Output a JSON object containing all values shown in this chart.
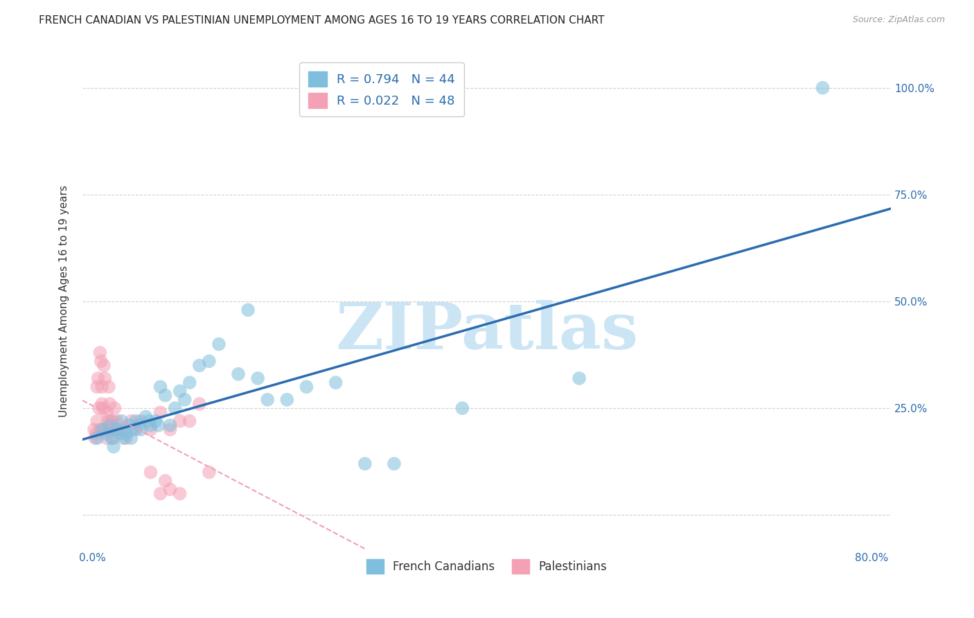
{
  "title": "FRENCH CANADIAN VS PALESTINIAN UNEMPLOYMENT AMONG AGES 16 TO 19 YEARS CORRELATION CHART",
  "source": "Source: ZipAtlas.com",
  "ylabel": "Unemployment Among Ages 16 to 19 years",
  "x_ticks": [
    0.0,
    0.2,
    0.4,
    0.6,
    0.8
  ],
  "x_tick_labels": [
    "0.0%",
    "",
    "",
    "",
    "80.0%"
  ],
  "y_ticks": [
    0.0,
    0.25,
    0.5,
    0.75,
    1.0
  ],
  "y_tick_labels": [
    "",
    "25.0%",
    "50.0%",
    "75.0%",
    "100.0%"
  ],
  "xlim": [
    -0.01,
    0.82
  ],
  "ylim": [
    -0.08,
    1.08
  ],
  "background_color": "#ffffff",
  "watermark": "ZIPatlas",
  "watermark_color": "#cce5f5",
  "blue_R": 0.794,
  "blue_N": 44,
  "pink_R": 0.022,
  "pink_N": 48,
  "blue_color": "#7fbfdd",
  "pink_color": "#f4a0b5",
  "blue_line_color": "#2b6cb0",
  "pink_line_color": "#f0a0b8",
  "blue_scatter_x": [
    0.005,
    0.01,
    0.015,
    0.018,
    0.02,
    0.022,
    0.025,
    0.028,
    0.03,
    0.032,
    0.035,
    0.038,
    0.04,
    0.042,
    0.045,
    0.048,
    0.05,
    0.055,
    0.058,
    0.06,
    0.065,
    0.068,
    0.07,
    0.075,
    0.08,
    0.085,
    0.09,
    0.095,
    0.1,
    0.11,
    0.12,
    0.13,
    0.15,
    0.16,
    0.17,
    0.18,
    0.2,
    0.22,
    0.25,
    0.28,
    0.31,
    0.38,
    0.5,
    0.75
  ],
  "blue_scatter_y": [
    0.18,
    0.2,
    0.19,
    0.21,
    0.18,
    0.16,
    0.2,
    0.19,
    0.22,
    0.18,
    0.19,
    0.21,
    0.18,
    0.2,
    0.22,
    0.21,
    0.2,
    0.23,
    0.22,
    0.21,
    0.22,
    0.21,
    0.3,
    0.28,
    0.21,
    0.25,
    0.29,
    0.27,
    0.31,
    0.35,
    0.36,
    0.4,
    0.33,
    0.48,
    0.32,
    0.27,
    0.27,
    0.3,
    0.31,
    0.12,
    0.12,
    0.25,
    0.32,
    1.0
  ],
  "pink_scatter_x": [
    0.002,
    0.003,
    0.004,
    0.005,
    0.005,
    0.006,
    0.007,
    0.008,
    0.008,
    0.009,
    0.01,
    0.01,
    0.011,
    0.012,
    0.012,
    0.013,
    0.014,
    0.015,
    0.015,
    0.016,
    0.016,
    0.017,
    0.018,
    0.018,
    0.019,
    0.02,
    0.02,
    0.022,
    0.023,
    0.025,
    0.027,
    0.03,
    0.035,
    0.04,
    0.045,
    0.05,
    0.06,
    0.07,
    0.08,
    0.09,
    0.1,
    0.11,
    0.06,
    0.07,
    0.075,
    0.08,
    0.09,
    0.12
  ],
  "pink_scatter_y": [
    0.2,
    0.18,
    0.19,
    0.3,
    0.22,
    0.32,
    0.25,
    0.38,
    0.2,
    0.36,
    0.3,
    0.26,
    0.25,
    0.35,
    0.2,
    0.32,
    0.2,
    0.24,
    0.18,
    0.22,
    0.2,
    0.3,
    0.22,
    0.26,
    0.2,
    0.2,
    0.22,
    0.18,
    0.25,
    0.22,
    0.2,
    0.2,
    0.18,
    0.22,
    0.2,
    0.22,
    0.2,
    0.24,
    0.2,
    0.22,
    0.22,
    0.26,
    0.1,
    0.05,
    0.08,
    0.06,
    0.05,
    0.1
  ],
  "title_fontsize": 11,
  "axis_label_fontsize": 11,
  "tick_fontsize": 11,
  "source_fontsize": 9,
  "legend_fontsize": 13
}
